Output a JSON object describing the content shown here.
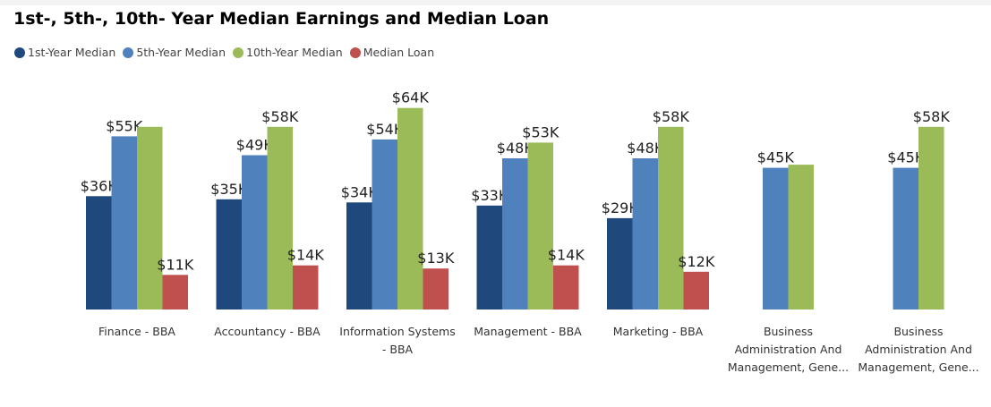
{
  "chart_data": {
    "type": "bar",
    "title": "1st-, 5th-, 10th- Year Median Earnings and Median Loan",
    "categories": [
      "Finance - BBA",
      "Accountancy - BBA",
      "Information Systems - BBA",
      "Management - BBA",
      "Marketing - BBA",
      "Business Administration And Management, Gene...",
      "Business Administration And Management, Gene..."
    ],
    "category_lines": [
      [
        "Finance - BBA"
      ],
      [
        "Accountancy - BBA"
      ],
      [
        "Information Systems",
        "- BBA"
      ],
      [
        "Management - BBA"
      ],
      [
        "Marketing - BBA"
      ],
      [
        "Business",
        "Administration And",
        "Management, Gene..."
      ],
      [
        "Business",
        "Administration And",
        "Management, Gene..."
      ]
    ],
    "series": [
      {
        "name": "1st-Year Median",
        "color": "#1f497d",
        "values": [
          36,
          35,
          34,
          33,
          29,
          null,
          null
        ],
        "labels": [
          "$36K",
          "$35K",
          "$34K",
          "$33K",
          "$29K",
          "",
          ""
        ]
      },
      {
        "name": "5th-Year Median",
        "color": "#4f81bd",
        "values": [
          55,
          49,
          54,
          48,
          48,
          45,
          45
        ],
        "labels": [
          "$55K",
          "$49K",
          "$54K",
          "$48K",
          "$48K",
          "$45K",
          "$45K"
        ]
      },
      {
        "name": "10th-Year Median",
        "color": "#9bbb59",
        "values": [
          58,
          58,
          64,
          53,
          58,
          46,
          58
        ],
        "labels": [
          "",
          "$58K",
          "$64K",
          "$53K",
          "$58K",
          "",
          "$58K"
        ]
      },
      {
        "name": "Median Loan",
        "color": "#c0504d",
        "values": [
          11,
          14,
          13,
          14,
          12,
          null,
          null
        ],
        "labels": [
          "$11K",
          "$14K",
          "$13K",
          "$14K",
          "$12K",
          "",
          ""
        ]
      }
    ],
    "value_unit": "thousands of dollars",
    "ylim": [
      0,
      64
    ],
    "grid": false,
    "legend_position": "top-left"
  }
}
